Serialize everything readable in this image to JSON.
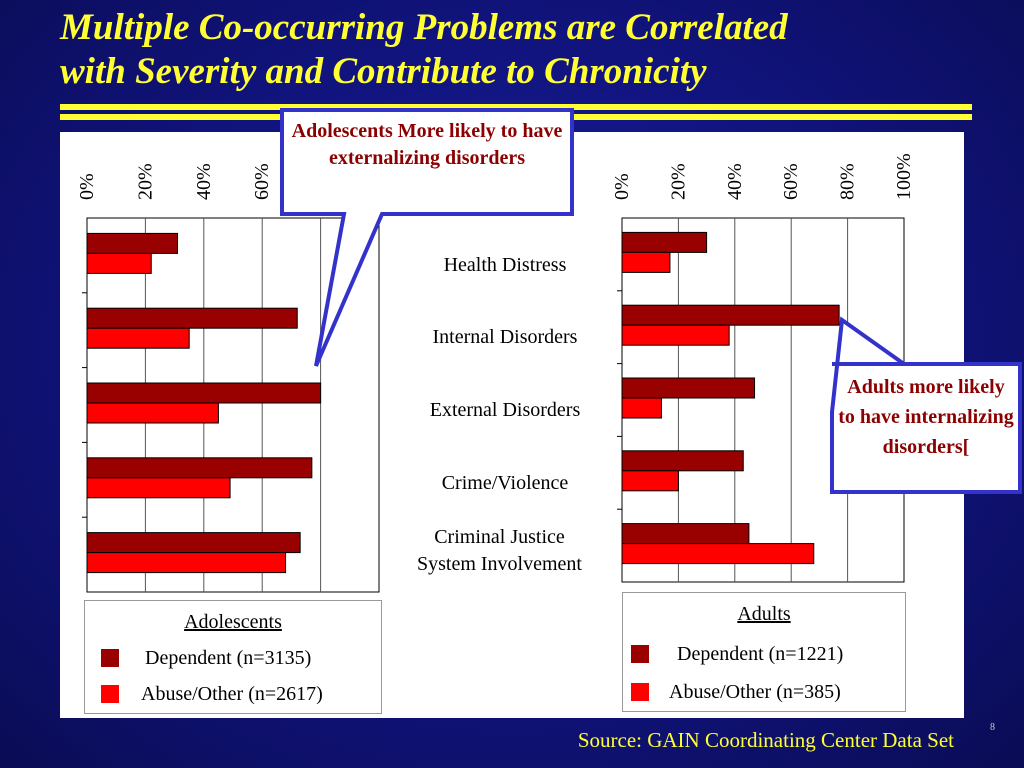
{
  "slide": {
    "title_line1": "Multiple Co-occurring Problems are Correlated",
    "title_line2": "with Severity and Contribute to Chronicity",
    "source": "Source: GAIN Coordinating Center Data Set",
    "slide_number": "8"
  },
  "callouts": {
    "adolescents": "Adolescents  More likely to have externalizing disorders",
    "adults": "Adults  more likely to have internalizing disorders["
  },
  "legends": {
    "adolescents": {
      "title": "Adolescents",
      "items": [
        "Dependent (n=3135)",
        "Abuse/Other (n=2617)"
      ]
    },
    "adults": {
      "title": "Adults",
      "items": [
        "Dependent (n=1221)",
        "Abuse/Other (n=385)"
      ]
    }
  },
  "colors": {
    "dependent": "#990000",
    "abuse_other": "#ff0000",
    "background": "#10137a",
    "title": "#ffff33",
    "callout_border": "#3333cc",
    "callout_text": "#8b0000"
  },
  "chart_data": [
    {
      "type": "bar",
      "orientation": "horizontal",
      "title": "Adolescents",
      "categories": [
        "Health Distress",
        "Internal Disorders",
        "External Disorders",
        "Crime/Violence",
        "Criminal Justice System Involvement"
      ],
      "series": [
        {
          "name": "Dependent (n=3135)",
          "values": [
            31,
            72,
            80,
            77,
            73
          ]
        },
        {
          "name": "Abuse/Other (n=2617)",
          "values": [
            22,
            35,
            45,
            49,
            68
          ]
        }
      ],
      "xlim": [
        0,
        100
      ],
      "ticks": [
        "0%",
        "20%",
        "40%",
        "60%"
      ],
      "grid": true
    },
    {
      "type": "bar",
      "orientation": "horizontal",
      "title": "Adults",
      "categories": [
        "Health Distress",
        "Internal Disorders",
        "External Disorders",
        "Crime/Violence",
        "Criminal Justice System Involvement"
      ],
      "series": [
        {
          "name": "Dependent (n=1221)",
          "values": [
            30,
            77,
            47,
            43,
            45
          ]
        },
        {
          "name": "Abuse/Other (n=385)",
          "values": [
            17,
            38,
            14,
            20,
            68
          ]
        }
      ],
      "xlim": [
        0,
        100
      ],
      "ticks": [
        "0%",
        "20%",
        "40%",
        "60%",
        "80%",
        "100%"
      ],
      "grid": true
    }
  ],
  "category_labels": [
    "Health Distress",
    "Internal Disorders",
    "External Disorders",
    "Crime/Violence",
    "Criminal Justice System Involvement"
  ]
}
